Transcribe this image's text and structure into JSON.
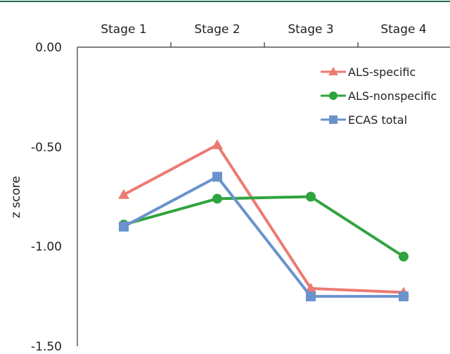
{
  "chart_data": {
    "type": "line",
    "title": "",
    "xlabel": "",
    "ylabel": "z score",
    "categories": [
      "Stage 1",
      "Stage 2",
      "Stage 3",
      "Stage 4"
    ],
    "ylim": [
      -1.5,
      0.0
    ],
    "yticks": [
      "0.00",
      "-0.50",
      "-1.00",
      "-1.50"
    ],
    "x_axis_position": "top",
    "grid": false,
    "legend": "top-right",
    "series": [
      {
        "name": "ALS-specific",
        "values": [
          -0.74,
          -0.49,
          -1.21,
          -1.23
        ],
        "color": "#ec7a72",
        "marker": "triangle"
      },
      {
        "name": "ALS-nonspecific",
        "values": [
          -0.89,
          -0.76,
          -0.75,
          -1.05
        ],
        "color": "#2ea43e",
        "marker": "circle"
      },
      {
        "name": "ECAS total",
        "values": [
          -0.9,
          -0.65,
          -1.25,
          -1.25
        ],
        "color": "#6a93cd",
        "marker": "square"
      }
    ],
    "colors": {
      "top_rule": "#1f6b57",
      "axis": "#333333"
    }
  }
}
